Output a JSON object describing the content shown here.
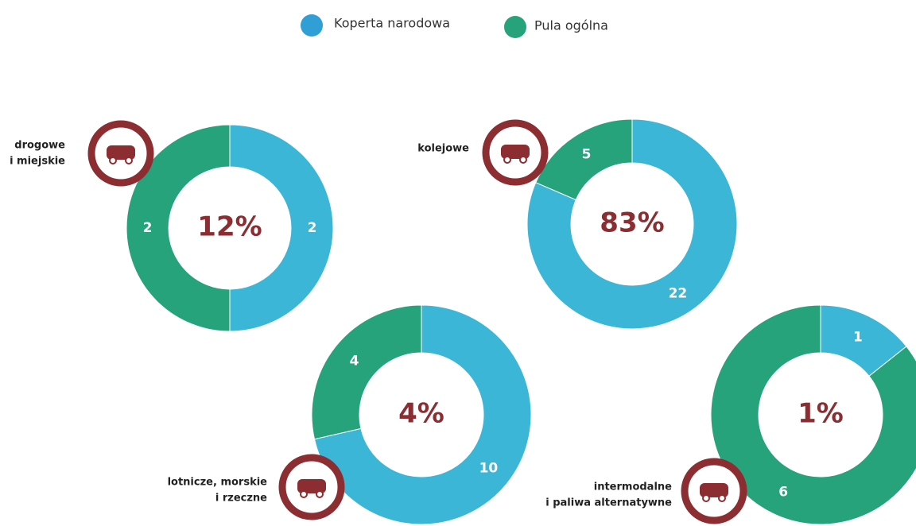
{
  "legend": {
    "categories": [
      "Koperta narodowa",
      "Pula ogólna"
    ],
    "colors": [
      "#3bb6d6",
      "#27a37c"
    ]
  },
  "chart_data": [
    {
      "type": "donut",
      "title": [
        "drogowe",
        "i miejskie"
      ],
      "center_label": "12%",
      "values": [
        2,
        2
      ]
    },
    {
      "type": "donut",
      "title": [
        "kolejowe"
      ],
      "center_label": "83%",
      "values": [
        22,
        5
      ]
    },
    {
      "type": "donut",
      "title": [
        "lotnicze, morskie",
        "i rzeczne"
      ],
      "center_label": "4%",
      "values": [
        10,
        4
      ]
    },
    {
      "type": "donut",
      "title": [
        "intermodalne",
        "i paliwa alternatywne"
      ],
      "center_label": "1%",
      "values": [
        1,
        6
      ]
    }
  ]
}
